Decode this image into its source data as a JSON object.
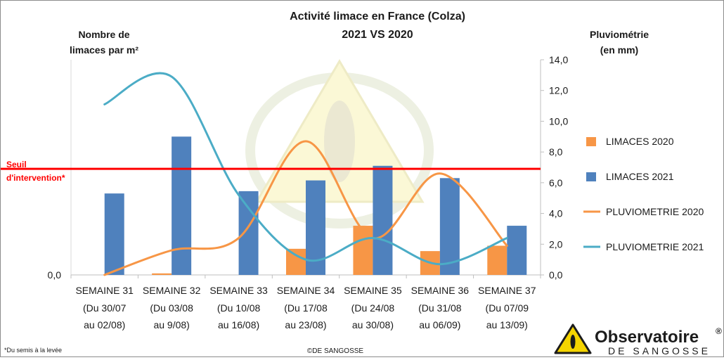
{
  "chart_data": {
    "type": "bar",
    "title": "Activité limace en France (Colza)",
    "subtitle": "2021 VS 2020",
    "ylabel": "Nombre de limaces par m²",
    "y2label": "Pluviométrie (en mm)",
    "y_tick_labels": [
      "0,0"
    ],
    "y2lim": [
      0,
      14
    ],
    "y2_ticks": [
      "0,0",
      "2,0",
      "4,0",
      "6,0",
      "8,0",
      "10,0",
      "12,0",
      "14,0"
    ],
    "categories": [
      {
        "week": "SEMAINE 31",
        "dates_l1": "(Du 30/07",
        "dates_l2": "au 02/08)"
      },
      {
        "week": "SEMAINE 32",
        "dates_l1": "(Du 03/08",
        "dates_l2": "au 9/08)"
      },
      {
        "week": "SEMAINE 33",
        "dates_l1": "(Du 10/08",
        "dates_l2": "au 16/08)"
      },
      {
        "week": "SEMAINE 34",
        "dates_l1": "(Du 17/08",
        "dates_l2": "au 23/08)"
      },
      {
        "week": "SEMAINE 35",
        "dates_l1": "(Du 24/08",
        "dates_l2": "au 30/08)"
      },
      {
        "week": "SEMAINE 36",
        "dates_l1": "(Du 31/08",
        "dates_l2": "au 06/09)"
      },
      {
        "week": "SEMAINE 37",
        "dates_l1": "(Du 07/09",
        "dates_l2": "au 13/09)"
      }
    ],
    "bar_scale_max": 14,
    "series": [
      {
        "name": "LIMACES 2020",
        "kind": "bar",
        "color": "#f79646",
        "values": [
          0,
          0.1,
          0,
          1.7,
          3.2,
          1.55,
          1.9
        ]
      },
      {
        "name": "LIMACES 2021",
        "kind": "bar",
        "color": "#4f81bd",
        "values": [
          5.3,
          9.0,
          5.45,
          6.15,
          7.1,
          6.3,
          3.2
        ]
      },
      {
        "name": "PLUVIOMETRIE 2020",
        "kind": "line",
        "color": "#f79646",
        "values": [
          0.0,
          1.6,
          2.4,
          8.7,
          2.4,
          6.6,
          1.9
        ]
      },
      {
        "name": "PLUVIOMETRIE 2021",
        "kind": "line",
        "color": "#4bacc6",
        "values": [
          11.1,
          12.9,
          5.2,
          1.0,
          2.4,
          0.7,
          2.4
        ]
      }
    ],
    "threshold": {
      "value": 6.9,
      "label_l1": "Seuil",
      "label_l2": "d'intervention*",
      "color": "#ff0000"
    },
    "legend_position": "right",
    "grid": false
  },
  "footer": {
    "note": "*Du semis à la levée",
    "credit": "©DE SANGOSSE"
  },
  "logo": {
    "name": "Observatoire",
    "reg": "®",
    "sub": "DE SANGOSSE",
    "colors": {
      "yellow": "#f5d400",
      "dark": "#1c1c1c",
      "watermark": "#f3f0c8"
    }
  }
}
